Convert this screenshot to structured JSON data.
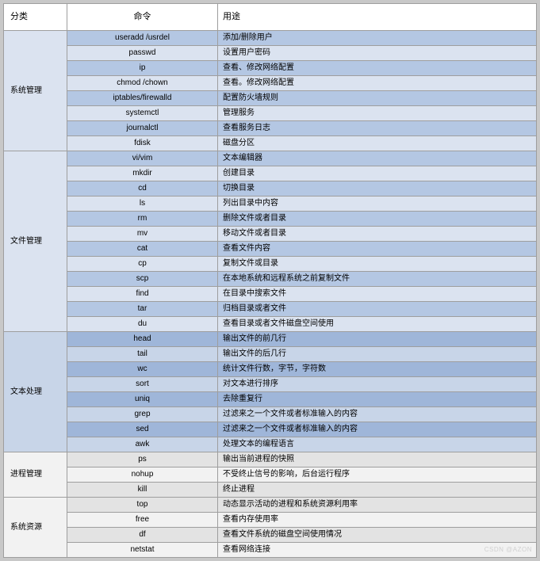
{
  "headers": {
    "category": "分类",
    "command": "命令",
    "usage": "用途"
  },
  "styles": {
    "colors": {
      "r0": "#b4c7e3",
      "r1": "#dbe3f0",
      "r2": "#9fb6d9",
      "r3": "#c8d5e8",
      "r4": "#e3e3e3",
      "r5": "#f2f2f2",
      "border": "#9e9e9e",
      "header_bg": "#ffffff",
      "page_bg": "#c8c8c8"
    },
    "font_size_body": 10,
    "font_size_header": 11,
    "col_widths": {
      "category": 80,
      "command": 190
    }
  },
  "watermark": "CSDN @AZON",
  "groups": [
    {
      "category": "系统管理",
      "cat_class": "r1",
      "row_classes": [
        "r0",
        "r1"
      ],
      "rows": [
        {
          "cmd": "useradd /usrdel",
          "use": "添加/删除用户"
        },
        {
          "cmd": "passwd",
          "use": "设置用户密码"
        },
        {
          "cmd": "ip",
          "use": "查看、修改网络配置"
        },
        {
          "cmd": "chmod /chown",
          "use": "查看。修改网络配置"
        },
        {
          "cmd": "iptables/firewalld",
          "use": "配置防火墙规则"
        },
        {
          "cmd": "systemctl",
          "use": "管理服务"
        },
        {
          "cmd": "journalctl",
          "use": "查看服务日志"
        },
        {
          "cmd": "fdisk",
          "use": "磁盘分区"
        }
      ]
    },
    {
      "category": "文件管理",
      "cat_class": "r1",
      "row_classes": [
        "r0",
        "r1"
      ],
      "rows": [
        {
          "cmd": "vi/vim",
          "use": "文本编辑器"
        },
        {
          "cmd": "mkdir",
          "use": "创建目录"
        },
        {
          "cmd": "cd",
          "use": "切换目录"
        },
        {
          "cmd": "ls",
          "use": "列出目录中内容"
        },
        {
          "cmd": "rm",
          "use": "删除文件或者目录"
        },
        {
          "cmd": "mv",
          "use": "移动文件或者目录"
        },
        {
          "cmd": "cat",
          "use": "查看文件内容"
        },
        {
          "cmd": "cp",
          "use": "复制文件或目录"
        },
        {
          "cmd": "scp",
          "use": "在本地系统和远程系统之前复制文件"
        },
        {
          "cmd": "find",
          "use": "在目录中搜索文件"
        },
        {
          "cmd": "tar",
          "use": "归档目录或者文件"
        },
        {
          "cmd": "du",
          "use": "查看目录或者文件磁盘空间使用"
        }
      ]
    },
    {
      "category": "文本处理",
      "cat_class": "r3",
      "row_classes": [
        "r2",
        "r3"
      ],
      "rows": [
        {
          "cmd": "head",
          "use": "输出文件的前几行"
        },
        {
          "cmd": "tail",
          "use": "输出文件的后几行"
        },
        {
          "cmd": "wc",
          "use": "统计文件行数，字节，字符数"
        },
        {
          "cmd": "sort",
          "use": "对文本进行排序"
        },
        {
          "cmd": "uniq",
          "use": "去除重复行"
        },
        {
          "cmd": "grep",
          "use": "过滤来之一个文件或者标准输入的内容"
        },
        {
          "cmd": "sed",
          "use": "过滤来之一个文件或者标准输入的内容"
        },
        {
          "cmd": "awk",
          "use": "处理文本的编程语言"
        }
      ]
    },
    {
      "category": "进程管理",
      "cat_class": "r5",
      "row_classes": [
        "r4",
        "r5"
      ],
      "rows": [
        {
          "cmd": "ps",
          "use": "输出当前进程的快照"
        },
        {
          "cmd": "nohup",
          "use": "不受终止信号的影响，后台运行程序"
        },
        {
          "cmd": "kill",
          "use": "终止进程"
        }
      ]
    },
    {
      "category": "系统资源",
      "cat_class": "r5",
      "row_classes": [
        "r4",
        "r5"
      ],
      "rows": [
        {
          "cmd": "top",
          "use": "动态显示活动的进程和系统资源利用率"
        },
        {
          "cmd": "free",
          "use": "查看内存使用率"
        },
        {
          "cmd": "df",
          "use": "查看文件系统的磁盘空间使用情况"
        },
        {
          "cmd": "netstat",
          "use": "查看网络连接"
        }
      ]
    }
  ]
}
